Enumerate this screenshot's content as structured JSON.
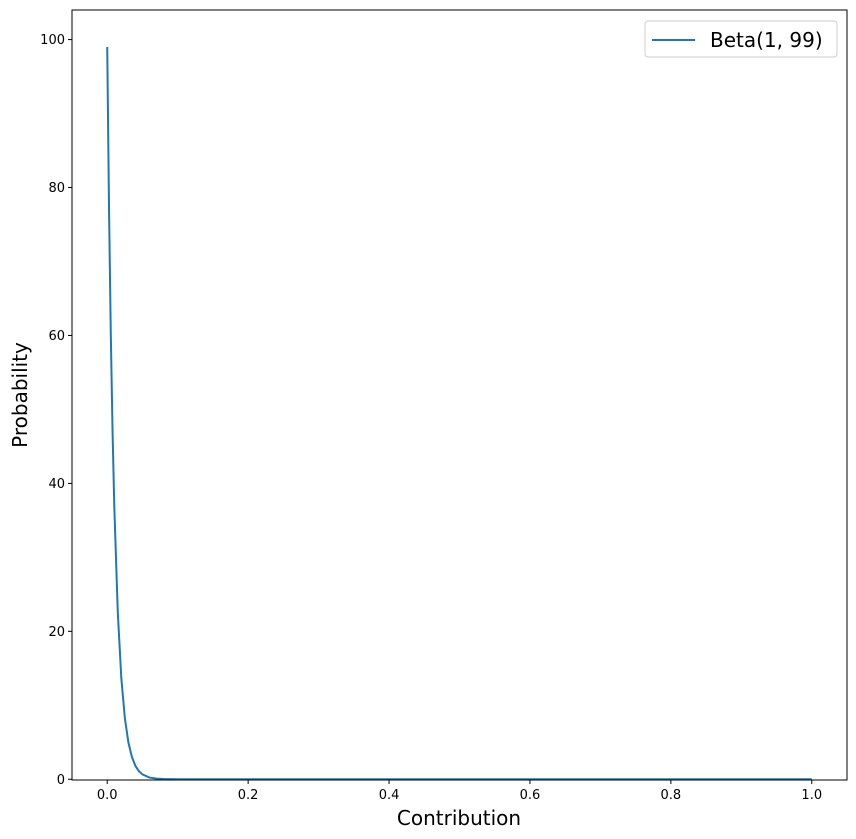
{
  "chart_data": {
    "type": "line",
    "title": "",
    "xlabel": "Contribution",
    "ylabel": "Probability",
    "xlim": [
      -0.05,
      1.05
    ],
    "ylim": [
      -0.1,
      104
    ],
    "grid": false,
    "legend_placement": "top-right",
    "xticks": [
      "0.0",
      "0.2",
      "0.4",
      "0.6",
      "0.8",
      "1.0"
    ],
    "yticks": [
      "0",
      "20",
      "40",
      "60",
      "80",
      "100"
    ],
    "series": [
      {
        "name": "Beta(1, 99)",
        "color": "#1f77b4",
        "x": [
          0,
          0.0025,
          0.005,
          0.0075,
          0.01,
          0.015,
          0.02,
          0.025,
          0.03,
          0.035,
          0.04,
          0.045,
          0.05,
          0.06,
          0.07,
          0.08,
          0.1,
          0.2,
          0.4,
          0.6,
          0.8,
          1.0
        ],
        "y": [
          99,
          77.47,
          60.58,
          47.34,
          36.97,
          22.51,
          13.67,
          8.28,
          5.0,
          3.01,
          1.81,
          1.087,
          0.649,
          0.23,
          0.081,
          0.028,
          0.003,
          0,
          0,
          0,
          0,
          0
        ]
      }
    ]
  }
}
